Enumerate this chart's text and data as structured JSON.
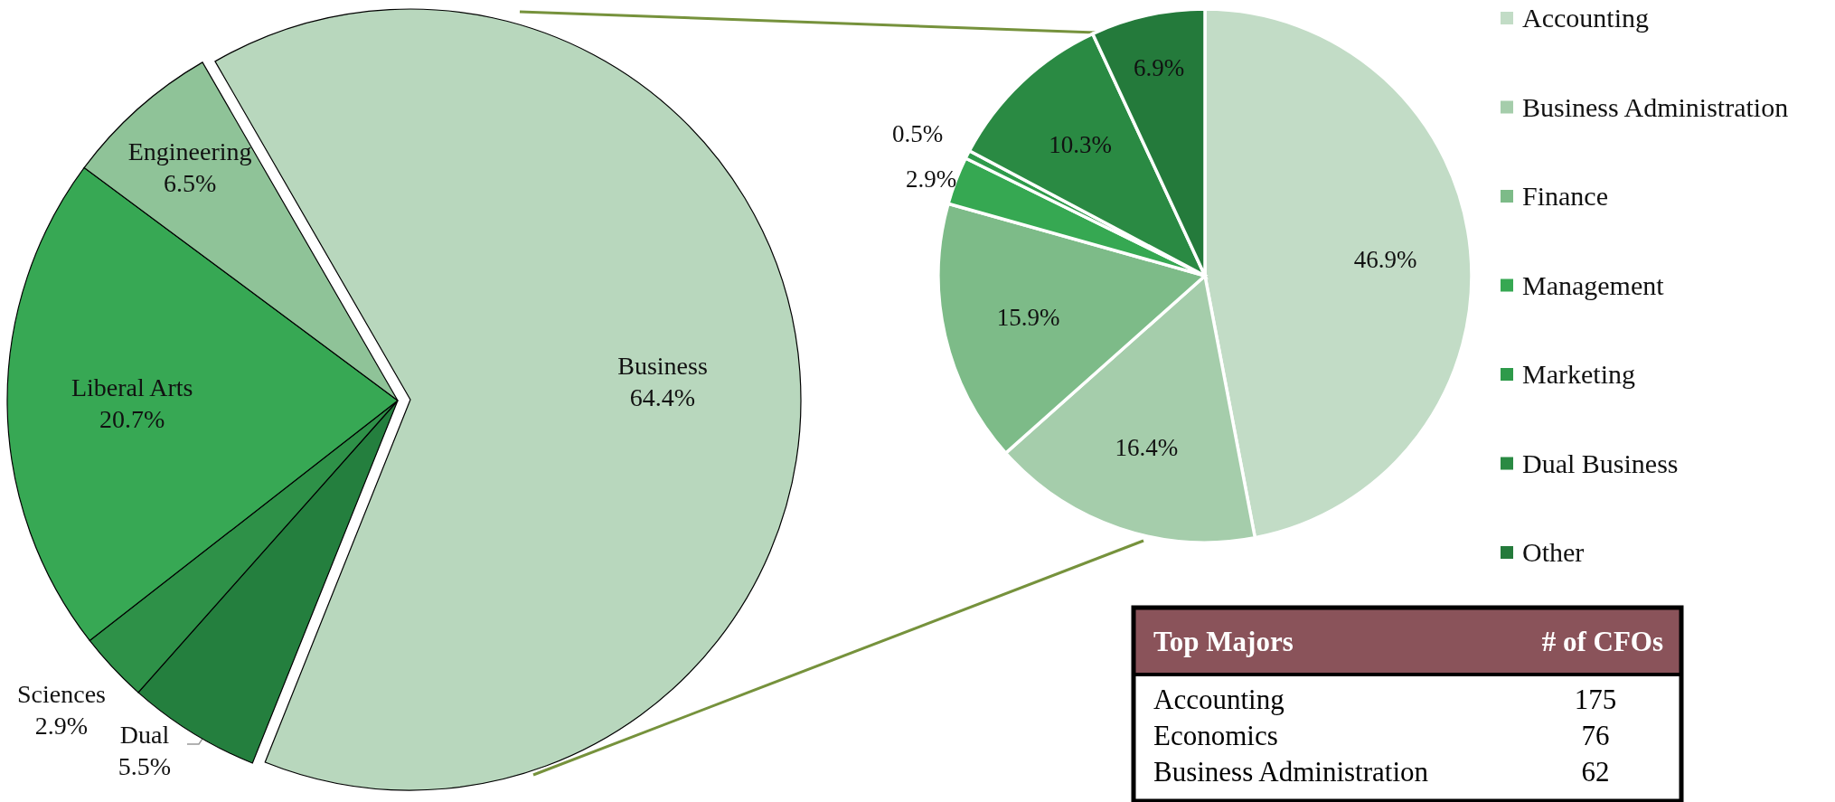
{
  "chart_data": [
    {
      "type": "pie",
      "categories": [
        "Business",
        "Dual",
        "Sciences",
        "Liberal Arts",
        "Engineering"
      ],
      "values": [
        64.4,
        5.5,
        2.9,
        20.7,
        6.5
      ],
      "value_labels": [
        "64.4%",
        "5.5%",
        "2.9%",
        "20.7%",
        "6.5%"
      ],
      "colors": [
        "#b8d7bd",
        "#247f3e",
        "#2e9148",
        "#37a854",
        "#8fc398"
      ],
      "legend": false
    },
    {
      "type": "pie",
      "categories": [
        "Accounting",
        "Business Administration",
        "Finance",
        "Management",
        "Marketing",
        "Dual Business",
        "Other"
      ],
      "values": [
        46.9,
        16.4,
        15.9,
        2.9,
        0.5,
        10.3,
        6.9
      ],
      "value_labels": [
        "46.9%",
        "16.4%",
        "15.9%",
        "2.9%",
        "0.5%",
        "10.3%",
        "6.9%"
      ],
      "colors": [
        "#c2dcc6",
        "#a5cdab",
        "#7dbb88",
        "#36a852",
        "#2e9a4a",
        "#2a8a43",
        "#247a3b"
      ],
      "legend": "right"
    },
    {
      "type": "other",
      "xlabel": "Top Majors",
      "ylabel": "# of CFOs",
      "categories": [
        "Accounting",
        "Economics",
        "Business Administration"
      ],
      "values": [
        175,
        76,
        62
      ],
      "data_labels": true
    }
  ]
}
